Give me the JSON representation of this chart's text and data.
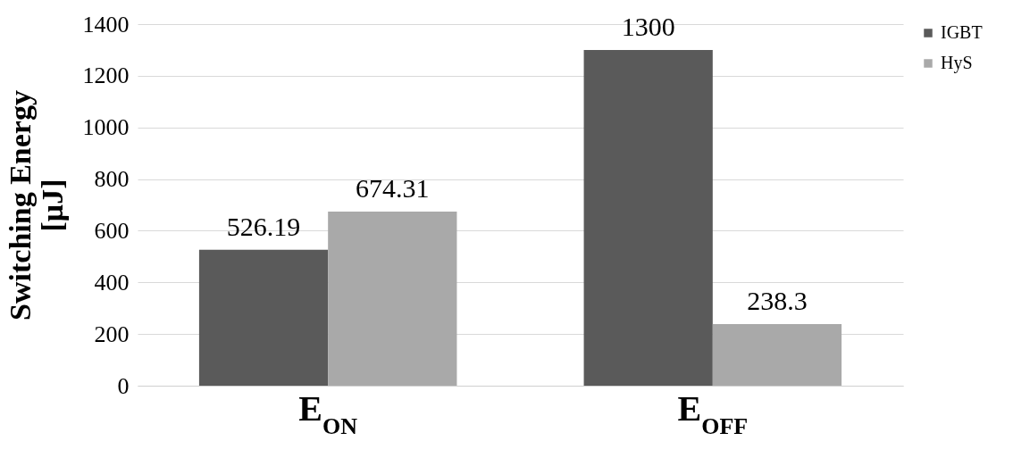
{
  "chart_data": {
    "type": "bar",
    "ylabel": "Switching Energy [μJ]",
    "categories": [
      "E$_{ON}$",
      "E$_{OFF}$"
    ],
    "series": [
      {
        "name": "IGBT",
        "color": "#5a5a5a",
        "values": [
          526.19,
          1300
        ]
      },
      {
        "name": "HyS",
        "color": "#a9a9a9",
        "values": [
          674.31,
          238.3
        ]
      }
    ],
    "ylim": [
      0,
      1400
    ],
    "yticks": [
      0,
      200,
      400,
      600,
      800,
      1000,
      1200,
      1400
    ],
    "grid": "y",
    "legend": "right",
    "data_labels": true
  }
}
